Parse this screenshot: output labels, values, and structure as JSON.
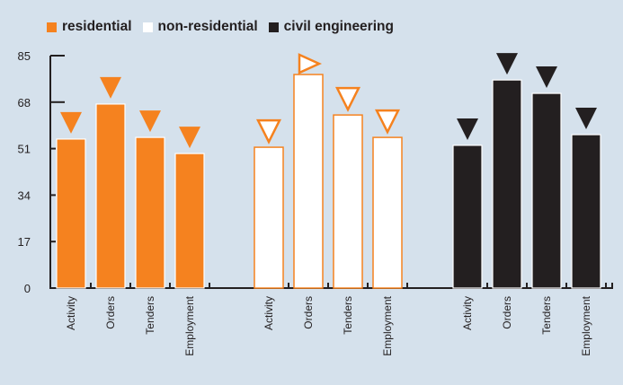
{
  "chart_data": {
    "type": "bar",
    "title": "",
    "xlabel": "",
    "ylabel": "",
    "ylim": [
      0,
      85
    ],
    "yticks": [
      0,
      17,
      34,
      51,
      68,
      85
    ],
    "categories": [
      "Activity",
      "Orders",
      "Tenders",
      "Employment"
    ],
    "legend_position": "top-left",
    "grid": false,
    "series": [
      {
        "name": "residential",
        "color": "#f5821f",
        "stroke": "#ffffff",
        "values": [
          54.5,
          67.3,
          55.1,
          49.2
        ],
        "expectation": [
          "down",
          "down",
          "down",
          "down"
        ],
        "marker_fill": "#f5821f",
        "marker_stroke": "#f5821f"
      },
      {
        "name": "non-residential",
        "color": "#ffffff",
        "stroke": "#f5821f",
        "values": [
          51.5,
          78.1,
          63.3,
          55.1
        ],
        "expectation": [
          "down",
          "right",
          "down",
          "down"
        ],
        "marker_fill": "#ffffff",
        "marker_stroke": "#f5821f"
      },
      {
        "name": "civil engineering",
        "color": "#231f20",
        "stroke": "#ffffff",
        "values": [
          52.2,
          76.1,
          71.2,
          56.1
        ],
        "expectation": [
          "down",
          "down",
          "down",
          "down"
        ],
        "marker_fill": "#231f20",
        "marker_stroke": "#231f20"
      }
    ]
  },
  "legend": [
    {
      "label": "residential",
      "color": "#f5821f"
    },
    {
      "label": "non-residential",
      "color": "#ffffff"
    },
    {
      "label": "civil engineering",
      "color": "#231f20"
    }
  ]
}
